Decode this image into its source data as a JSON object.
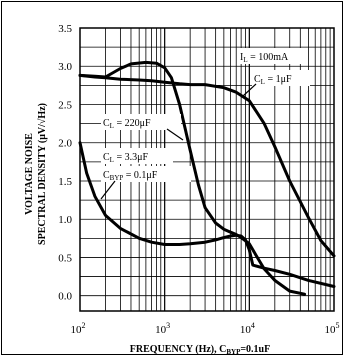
{
  "chart_data": {
    "type": "line",
    "xlabel_main": "FREQUENCY (Hz), C",
    "xlabel_sub": "BYP",
    "xlabel_end": "=0.1uF",
    "ylabel_line1": "VOLTAGE NOISE",
    "ylabel_line2": "SPECTRAL DENSITY (μV/√Hz)",
    "x_scale": "log",
    "xlim": [
      100,
      100000
    ],
    "ylim": [
      -0.2,
      3.5
    ],
    "grid": true,
    "y_ticks": [
      "0.0",
      "0.5",
      "1.0",
      "1.5",
      "2.0",
      "2.5",
      "3.0",
      "3.5"
    ],
    "y_tick_values": [
      0,
      0.5,
      1.0,
      1.5,
      2.0,
      2.5,
      3.0,
      3.5
    ],
    "x_ticks": [
      {
        "base": "10",
        "exp": "2",
        "value": 100
      },
      {
        "base": "10",
        "exp": "3",
        "value": 1000
      },
      {
        "base": "10",
        "exp": "4",
        "value": 10000
      },
      {
        "base": "10",
        "exp": "5",
        "value": 100000
      }
    ],
    "series": [
      {
        "x": [
          100,
          150,
          200,
          300,
          500,
          700,
          1000,
          1500,
          2000,
          3000,
          5000,
          7000,
          10000,
          15000,
          20000,
          30000,
          50000,
          70000,
          100000
        ],
        "y": [
          2.88,
          2.86,
          2.85,
          2.83,
          2.82,
          2.81,
          2.79,
          2.77,
          2.76,
          2.76,
          2.72,
          2.66,
          2.55,
          2.25,
          1.95,
          1.5,
          1.02,
          0.72,
          0.52
        ]
      },
      {
        "x": [
          100,
          150,
          200,
          300,
          400,
          600,
          800,
          1000,
          1200,
          1500,
          2000,
          2500,
          3000,
          4000,
          5000,
          6000,
          7000,
          8000,
          10000,
          12000,
          15000,
          20000,
          30000,
          45000
        ],
        "y": [
          2.88,
          2.87,
          2.86,
          2.97,
          3.03,
          3.05,
          3.04,
          2.98,
          2.85,
          2.5,
          1.9,
          1.45,
          1.15,
          0.95,
          0.87,
          0.83,
          0.8,
          0.76,
          0.68,
          0.53,
          0.35,
          0.2,
          0.06,
          0.02
        ]
      },
      {
        "x": [
          100,
          120,
          150,
          200,
          300,
          500,
          700,
          1000,
          1500,
          2000,
          3000,
          4000,
          5000,
          6000,
          7000,
          8000,
          9000,
          10000,
          11000,
          15000,
          20000,
          30000,
          50000,
          100000
        ],
        "y": [
          2.0,
          1.6,
          1.3,
          1.05,
          0.88,
          0.75,
          0.7,
          0.67,
          0.67,
          0.68,
          0.7,
          0.73,
          0.76,
          0.78,
          0.79,
          0.78,
          0.73,
          0.6,
          0.4,
          0.36,
          0.33,
          0.28,
          0.2,
          0.12
        ]
      }
    ],
    "annotations": [
      {
        "id": "il",
        "label_main": "I",
        "label_sub": "L",
        "label_end": " = 100mA"
      },
      {
        "id": "cl1",
        "label_main": "C",
        "label_sub": "L",
        "label_end": " = 1μF"
      },
      {
        "id": "cl220",
        "label_main": "C",
        "label_sub": "L",
        "label_end": " = 220μF"
      },
      {
        "id": "cl33",
        "label_main": "C",
        "label_sub": "L",
        "label_end": " = 3.3μF"
      },
      {
        "id": "cbyp",
        "label_main": "C",
        "label_sub": "BYP",
        "label_end": " = 0.1μF"
      }
    ]
  }
}
